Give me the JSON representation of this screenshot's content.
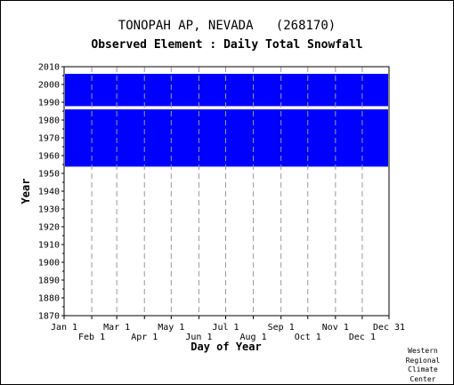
{
  "station_title": "TONOPAH AP, NEVADA   (268170)",
  "credit_lines": [
    "Western",
    "Regional",
    "Climate",
    "Center"
  ],
  "chart_data": {
    "type": "heatmap",
    "title": "Observed Element : Daily Total Snowfall",
    "xlabel": "Day of Year",
    "ylabel": "Year",
    "ylim": [
      1870,
      2010
    ],
    "y_ticks": [
      1870,
      1880,
      1890,
      1900,
      1910,
      1920,
      1930,
      1940,
      1950,
      1960,
      1970,
      1980,
      1990,
      2000,
      2010
    ],
    "x_ticks_upper": [
      "Jan 1",
      "Mar 1",
      "May 1",
      "Jul 1",
      "Sep 1",
      "Nov 1",
      "Dec 31"
    ],
    "x_ticks_lower": [
      "Feb 1",
      "Apr 1",
      "Jun 1",
      "Aug 1",
      "Oct 1",
      "Dec 1"
    ],
    "grid": "dashed-vertical",
    "colors": {
      "observed": "#0000ff",
      "missing": "#ffffff"
    },
    "record_start_year": 1954,
    "record_end_year": 2005,
    "gap_years": [
      1986,
      1987
    ]
  }
}
